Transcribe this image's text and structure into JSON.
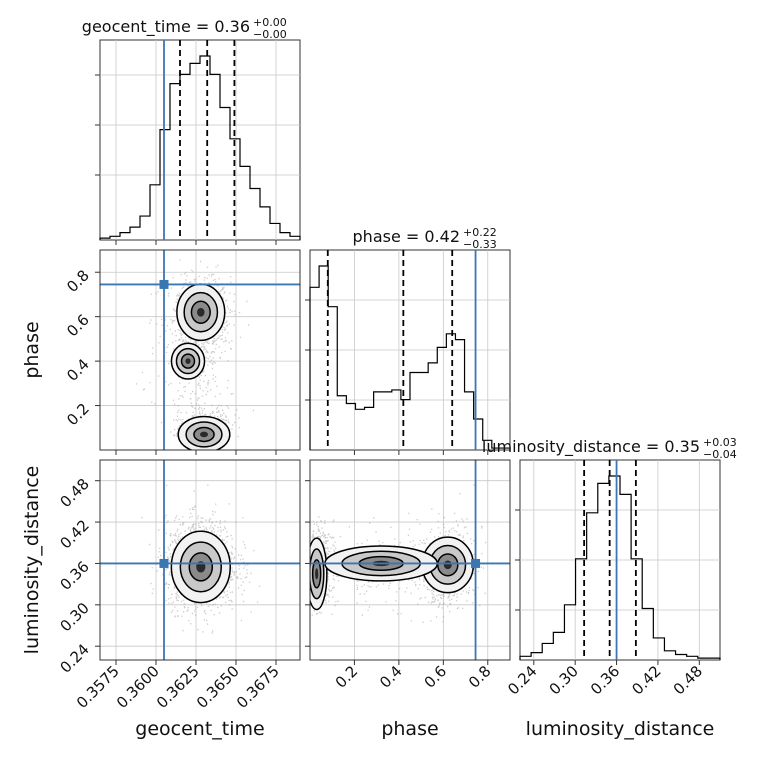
{
  "chart_data": {
    "type": "corner",
    "truth_color": "#3a77b0",
    "parameters": [
      {
        "name": "geocent_time",
        "label": "geocent_time",
        "title": "geocent_time = 0.36",
        "title_sup": "+0.00",
        "title_sub": "−0.00",
        "range": [
          0.3565,
          0.369
        ],
        "ticks": [
          0.3575,
          0.36,
          0.3625,
          0.365,
          0.3675
        ],
        "tick_labels": [
          "0.3575",
          "0.3600",
          "0.3625",
          "0.3650",
          "0.3675"
        ],
        "truth": 0.3605,
        "quantiles": [
          0.3615,
          0.3632,
          0.3649
        ],
        "hist": [
          1,
          2,
          4,
          7,
          13,
          30,
          60,
          85,
          90,
          96,
          100,
          90,
          72,
          55,
          40,
          28,
          18,
          9,
          4,
          2
        ]
      },
      {
        "name": "phase",
        "label": "phase",
        "title": "phase = 0.42",
        "title_sup": "+0.22",
        "title_sub": "−0.33",
        "range": [
          0.0,
          0.9
        ],
        "ticks": [
          0.2,
          0.4,
          0.6,
          0.8
        ],
        "tick_labels": [
          "0.2",
          "0.4",
          "0.6",
          "0.8"
        ],
        "truth": 0.745,
        "quantiles": [
          0.08,
          0.42,
          0.64
        ],
        "hist": [
          84,
          95,
          74,
          28,
          24,
          21,
          22,
          30,
          30,
          31,
          26,
          40,
          40,
          45,
          53,
          60,
          57,
          30,
          16,
          5,
          1,
          1
        ]
      },
      {
        "name": "luminosity_distance",
        "label": "luminosity_distance",
        "title": "luminosity_distance = 0.35",
        "title_sup": "+0.03",
        "title_sub": "−0.04",
        "range": [
          0.22,
          0.51
        ],
        "ticks": [
          0.24,
          0.3,
          0.36,
          0.42,
          0.48
        ],
        "tick_labels": [
          "0.24",
          "0.30",
          "0.36",
          "0.42",
          "0.48"
        ],
        "truth": 0.36,
        "quantiles": [
          0.313,
          0.35,
          0.388
        ],
        "hist": [
          2,
          4,
          9,
          15,
          30,
          55,
          80,
          96,
          100,
          90,
          55,
          28,
          12,
          5,
          3,
          2,
          1,
          1
        ]
      }
    ]
  }
}
